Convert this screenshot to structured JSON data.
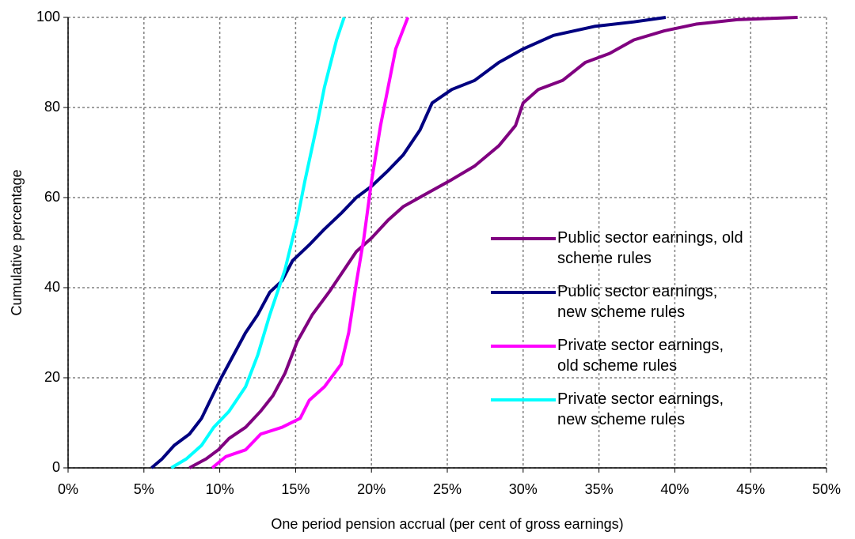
{
  "chart_data": {
    "type": "line",
    "x_label": "One period pension accrual (per cent of gross earnings)",
    "y_label": "Cumulative percentage",
    "xlim": [
      0,
      50
    ],
    "ylim": [
      0,
      100
    ],
    "xticks": [
      {
        "value": 0,
        "label": "0%"
      },
      {
        "value": 5,
        "label": "5%"
      },
      {
        "value": 10,
        "label": "10%"
      },
      {
        "value": 15,
        "label": "15%"
      },
      {
        "value": 20,
        "label": "20%"
      },
      {
        "value": 25,
        "label": "25%"
      },
      {
        "value": 30,
        "label": "30%"
      },
      {
        "value": 35,
        "label": "35%"
      },
      {
        "value": 40,
        "label": "40%"
      },
      {
        "value": 45,
        "label": "45%"
      },
      {
        "value": 50,
        "label": "50%"
      }
    ],
    "yticks": [
      0,
      20,
      40,
      60,
      80,
      100
    ],
    "grid": true,
    "legend": "right",
    "series": [
      {
        "name": "Public sector earnings, old scheme rules",
        "color": "#800080",
        "x": [
          8.0,
          9.1,
          9.9,
          10.6,
          11.7,
          12.7,
          13.5,
          14.3,
          15.1,
          16.1,
          17.2,
          18.2,
          19.0,
          20.0,
          21.1,
          22.1,
          23.7,
          25.3,
          26.8,
          28.4,
          29.5,
          30.0,
          31.0,
          32.6,
          34.1,
          35.7,
          37.3,
          39.3,
          41.4,
          44.1,
          48.1
        ],
        "values": [
          0,
          2,
          4,
          6.5,
          9,
          12.6,
          16,
          21,
          28,
          34,
          39,
          44,
          48,
          51,
          55,
          58,
          61,
          64,
          67,
          71.5,
          76,
          81,
          84,
          86,
          90,
          92,
          95,
          97,
          98.5,
          99.5,
          100
        ]
      },
      {
        "name": "Public sector earnings, new scheme rules",
        "color": "#000080",
        "x": [
          5.5,
          6.2,
          7.0,
          8.0,
          8.8,
          9.3,
          10.1,
          10.9,
          11.7,
          12.5,
          13.3,
          14.1,
          14.8,
          15.9,
          16.9,
          18.0,
          19.0,
          20.0,
          21.1,
          22.1,
          23.2,
          24.0,
          25.3,
          26.8,
          28.4,
          30.0,
          32.0,
          34.7,
          37.3,
          39.4
        ],
        "values": [
          0,
          2,
          5,
          7.5,
          11,
          14.5,
          20,
          25,
          30,
          34,
          39,
          41.5,
          46,
          49.5,
          53,
          56.5,
          60,
          62.5,
          66,
          69.5,
          75,
          81,
          84,
          86,
          90,
          93,
          96,
          98,
          99,
          100
        ]
      },
      {
        "name": "Private sector earnings, old scheme rules",
        "color": "#ff00ff",
        "x": [
          9.5,
          10.4,
          11.7,
          12.7,
          14.1,
          15.3,
          15.9,
          16.9,
          18.0,
          18.5,
          19.0,
          19.5,
          20.0,
          20.6,
          21.1,
          21.6,
          22.4
        ],
        "values": [
          0,
          2.5,
          4,
          7.5,
          9,
          11,
          15,
          18,
          23,
          30,
          41,
          51,
          63.5,
          76,
          84.5,
          93,
          100
        ]
      },
      {
        "name": "Private sector earnings, new scheme rules",
        "color": "#00ffff",
        "x": [
          6.8,
          7.8,
          8.8,
          9.6,
          10.6,
          11.7,
          12.5,
          13.3,
          14.3,
          15.1,
          15.6,
          16.4,
          16.9,
          17.7,
          18.2
        ],
        "values": [
          0,
          2,
          5,
          9,
          12.5,
          18,
          25,
          34,
          44,
          55,
          63.5,
          76,
          84.5,
          95,
          100
        ]
      }
    ]
  }
}
